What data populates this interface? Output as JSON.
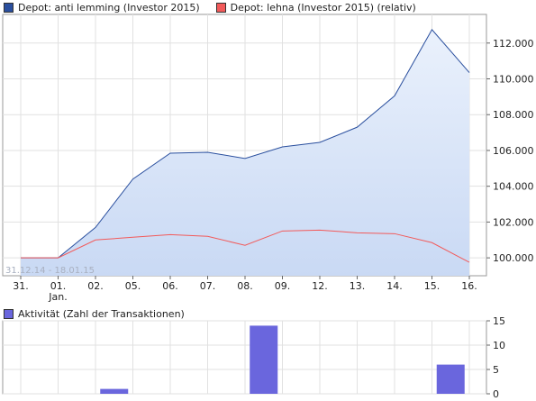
{
  "legend": {
    "series_1": "Depot: anti lemming (Investor 2015)",
    "series_2": "Depot: lehna (Investor 2015) (relativ)",
    "series_1_color": "#2a4f9e",
    "series_2_color": "#f25a5a"
  },
  "activity_legend": {
    "label": "Aktivität (Zahl der Transaktionen)",
    "color": "#6a66dd"
  },
  "date_range": "31.12.14 - 18.01.15",
  "chart_data": [
    {
      "type": "area",
      "categories": [
        "31.",
        "01.",
        "02.",
        "05.",
        "06.",
        "07.",
        "08.",
        "09.",
        "12.",
        "13.",
        "14.",
        "15.",
        "16."
      ],
      "x_sublabels": [
        "",
        "Jan.",
        "",
        "",
        "",
        "",
        "",
        "",
        "",
        "",
        "",
        "",
        ""
      ],
      "series": [
        {
          "name": "Depot: anti lemming (Investor 2015)",
          "values": [
            100000,
            100000,
            101700,
            104400,
            105850,
            105900,
            105550,
            106200,
            106450,
            107300,
            109050,
            112750,
            110350
          ]
        },
        {
          "name": "Depot: lehna (Investor 2015) (relativ)",
          "values": [
            100000,
            100000,
            101000,
            101150,
            101300,
            101200,
            100700,
            101500,
            101550,
            101400,
            101350,
            100850,
            99750
          ]
        }
      ],
      "y_ticks": [
        "100.000",
        "102.000",
        "104.000",
        "106.000",
        "108.000",
        "110.000",
        "112.000"
      ],
      "ylim": [
        99000,
        113600
      ],
      "grid": true
    },
    {
      "type": "bar",
      "title": "Aktivität (Zahl der Transaktionen)",
      "categories": [
        "31.",
        "01.",
        "02.",
        "05.",
        "06.",
        "07.",
        "08.",
        "09.",
        "12.",
        "13.",
        "14.",
        "15.",
        "16."
      ],
      "values": [
        0,
        0,
        1,
        0,
        0,
        0,
        14,
        0,
        0,
        0,
        0,
        6,
        0
      ],
      "y_ticks": [
        "0",
        "5",
        "10",
        "15"
      ],
      "ylim": [
        0,
        15
      ],
      "grid": true
    }
  ]
}
